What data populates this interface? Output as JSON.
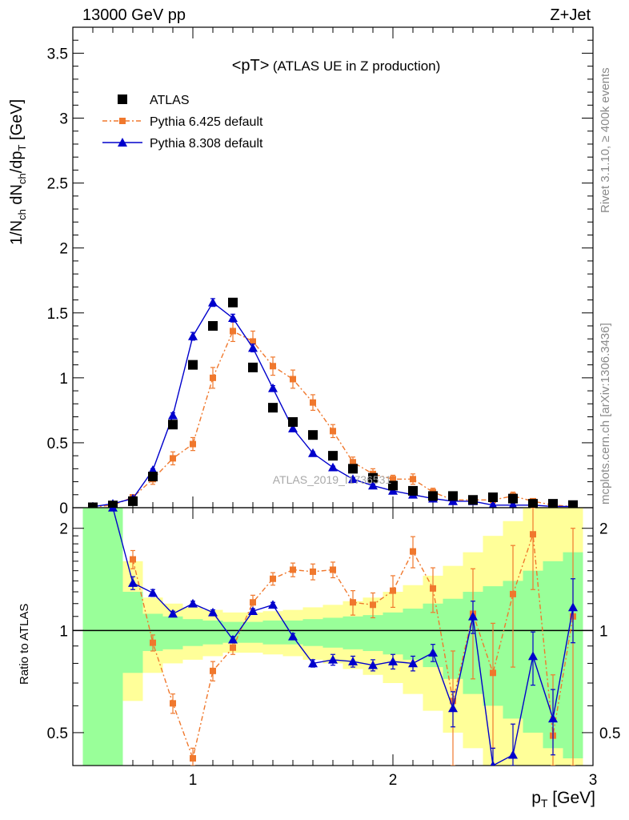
{
  "header": {
    "energy_label": "13000 GeV pp",
    "process_label": "Z+Jet"
  },
  "side_labels": {
    "rivet": "Rivet 3.1.10, ≥ 400k events",
    "mcplots": "mcplots.cern.ch [arXiv:1306.3436]"
  },
  "plot": {
    "title_main": "<pT>",
    "title_sub": "(ATLAS UE in Z production)",
    "watermark": "ATLAS_2019_I1736531",
    "y_label_main": "1/N",
    "y_label_sub1": "ch",
    "y_label_mid": " dN",
    "y_label_sub2": "ch",
    "y_label_end": "/dp",
    "y_label_sub3": "T",
    "y_label_unit": " [GeV]",
    "ratio_ylabel": "Ratio to ATLAS",
    "x_label_main": "p",
    "x_label_sub": "T",
    "x_label_unit": " [GeV]"
  },
  "legend": [
    {
      "label": "ATLAS",
      "color": "#000000",
      "marker": "square"
    },
    {
      "label": "Pythia 6.425 default",
      "color": "#f0782d",
      "marker": "square",
      "line": "dashdot"
    },
    {
      "label": "Pythia 8.308 default",
      "color": "#0000cc",
      "marker": "triangle",
      "line": "solid"
    }
  ],
  "chart_data": {
    "type": "scatter",
    "x": [
      0.5,
      0.6,
      0.7,
      0.8,
      0.9,
      1.0,
      1.1,
      1.2,
      1.3,
      1.4,
      1.5,
      1.6,
      1.7,
      1.8,
      1.9,
      2.0,
      2.1,
      2.2,
      2.3,
      2.4,
      2.5,
      2.6,
      2.7,
      2.8,
      2.9
    ],
    "xlim": [
      0.4,
      3.0
    ],
    "xticks": [
      1,
      2,
      3
    ],
    "ylim": [
      0,
      3.7
    ],
    "yticks": [
      0,
      0.5,
      1,
      1.5,
      2,
      2.5,
      3,
      3.5
    ],
    "series": [
      {
        "name": "ATLAS",
        "values": [
          0.003,
          0.017,
          0.05,
          0.24,
          0.64,
          1.1,
          1.4,
          1.58,
          1.08,
          0.77,
          0.66,
          0.56,
          0.4,
          0.3,
          0.23,
          0.17,
          0.13,
          0.09,
          0.09,
          0.06,
          0.08,
          0.07,
          0.03,
          0.03,
          0.02
        ]
      },
      {
        "name": "Pythia 6.425 default",
        "values": [
          0.005,
          0.02,
          0.08,
          0.22,
          0.38,
          0.49,
          1.0,
          1.36,
          1.28,
          1.09,
          0.99,
          0.81,
          0.59,
          0.35,
          0.26,
          0.22,
          0.22,
          0.12,
          0.06,
          0.06,
          0.06,
          0.09,
          0.05,
          0.02,
          0.01
        ],
        "errors": [
          0.002,
          0.005,
          0.01,
          0.04,
          0.05,
          0.05,
          0.08,
          0.08,
          0.08,
          0.07,
          0.07,
          0.06,
          0.05,
          0.04,
          0.04,
          0.03,
          0.04,
          0.03,
          0.02,
          0.02,
          0.02,
          0.03,
          0.02,
          0.01,
          0.01
        ]
      },
      {
        "name": "Pythia 8.308 default",
        "values": [
          0.008,
          0.03,
          0.07,
          0.29,
          0.71,
          1.32,
          1.58,
          1.46,
          1.23,
          0.92,
          0.61,
          0.42,
          0.31,
          0.22,
          0.17,
          0.13,
          0.1,
          0.07,
          0.05,
          0.05,
          0.02,
          0.02,
          0.02,
          0.01,
          0.01
        ],
        "errors": [
          0.002,
          0.003,
          0.005,
          0.01,
          0.02,
          0.03,
          0.03,
          0.03,
          0.03,
          0.02,
          0.02,
          0.01,
          0.01,
          0.01,
          0.01,
          0.01,
          0.01,
          0.01,
          0.01,
          0.01,
          0.01,
          0.01,
          0.01,
          0.01,
          0.01
        ]
      }
    ],
    "ratio": {
      "ylim": [
        0.4,
        2.3
      ],
      "yticks": [
        0.5,
        1,
        2
      ],
      "log_scale": true,
      "reference_line": 1,
      "series": [
        {
          "name": "Pythia 6.425 default",
          "values": [
            null,
            null,
            1.62,
            0.92,
            0.61,
            0.42,
            0.76,
            0.89,
            1.21,
            1.42,
            1.51,
            1.49,
            1.51,
            1.21,
            1.19,
            1.31,
            1.71,
            1.33,
            0.62,
            1.12,
            0.75,
            1.28,
            1.92,
            0.49,
            1.1
          ],
          "errors": [
            0,
            0,
            0.1,
            0.05,
            0.04,
            0.03,
            0.05,
            0.04,
            0.06,
            0.06,
            0.07,
            0.08,
            0.08,
            0.1,
            0.1,
            0.14,
            0.18,
            0.2,
            0.25,
            0.4,
            0.3,
            0.5,
            0.6,
            0.25,
            0.9
          ]
        },
        {
          "name": "Pythia 8.308 default",
          "values": [
            null,
            2.3,
            1.38,
            1.29,
            1.12,
            1.2,
            1.13,
            0.94,
            1.14,
            1.19,
            0.96,
            0.8,
            0.82,
            0.81,
            0.79,
            0.81,
            0.8,
            0.86,
            0.59,
            1.1,
            0.35,
            0.43,
            0.84,
            0.55,
            1.17
          ],
          "errors": [
            0,
            0,
            0.06,
            0.03,
            0.02,
            0.02,
            0.02,
            0.02,
            0.02,
            0.02,
            0.02,
            0.02,
            0.03,
            0.03,
            0.03,
            0.04,
            0.04,
            0.05,
            0.07,
            0.12,
            0.1,
            0.1,
            0.15,
            0.12,
            0.25
          ]
        }
      ],
      "band_green": [
        [
          2.3,
          0.4
        ],
        [
          2.3,
          0.4
        ],
        [
          1.3,
          0.75
        ],
        [
          1.12,
          0.87
        ],
        [
          1.1,
          0.88
        ],
        [
          1.08,
          0.9
        ],
        [
          1.07,
          0.91
        ],
        [
          1.06,
          0.92
        ],
        [
          1.06,
          0.92
        ],
        [
          1.07,
          0.91
        ],
        [
          1.07,
          0.91
        ],
        [
          1.08,
          0.9
        ],
        [
          1.09,
          0.89
        ],
        [
          1.1,
          0.88
        ],
        [
          1.11,
          0.87
        ],
        [
          1.13,
          0.85
        ],
        [
          1.16,
          0.82
        ],
        [
          1.2,
          0.78
        ],
        [
          1.24,
          0.72
        ],
        [
          1.3,
          0.65
        ],
        [
          1.35,
          0.6
        ],
        [
          1.4,
          0.55
        ],
        [
          1.5,
          0.5
        ],
        [
          1.6,
          0.45
        ],
        [
          1.7,
          0.42
        ]
      ],
      "band_yellow": [
        [
          2.3,
          0.4
        ],
        [
          2.3,
          0.4
        ],
        [
          1.6,
          0.62
        ],
        [
          1.25,
          0.75
        ],
        [
          1.2,
          0.8
        ],
        [
          1.17,
          0.82
        ],
        [
          1.15,
          0.84
        ],
        [
          1.13,
          0.86
        ],
        [
          1.13,
          0.86
        ],
        [
          1.14,
          0.85
        ],
        [
          1.15,
          0.84
        ],
        [
          1.17,
          0.82
        ],
        [
          1.19,
          0.8
        ],
        [
          1.22,
          0.77
        ],
        [
          1.25,
          0.74
        ],
        [
          1.3,
          0.7
        ],
        [
          1.36,
          0.65
        ],
        [
          1.45,
          0.58
        ],
        [
          1.55,
          0.5
        ],
        [
          1.7,
          0.45
        ],
        [
          1.9,
          0.4
        ],
        [
          2.1,
          0.4
        ],
        [
          2.3,
          0.4
        ],
        [
          2.3,
          0.4
        ],
        [
          2.3,
          0.4
        ]
      ]
    }
  }
}
